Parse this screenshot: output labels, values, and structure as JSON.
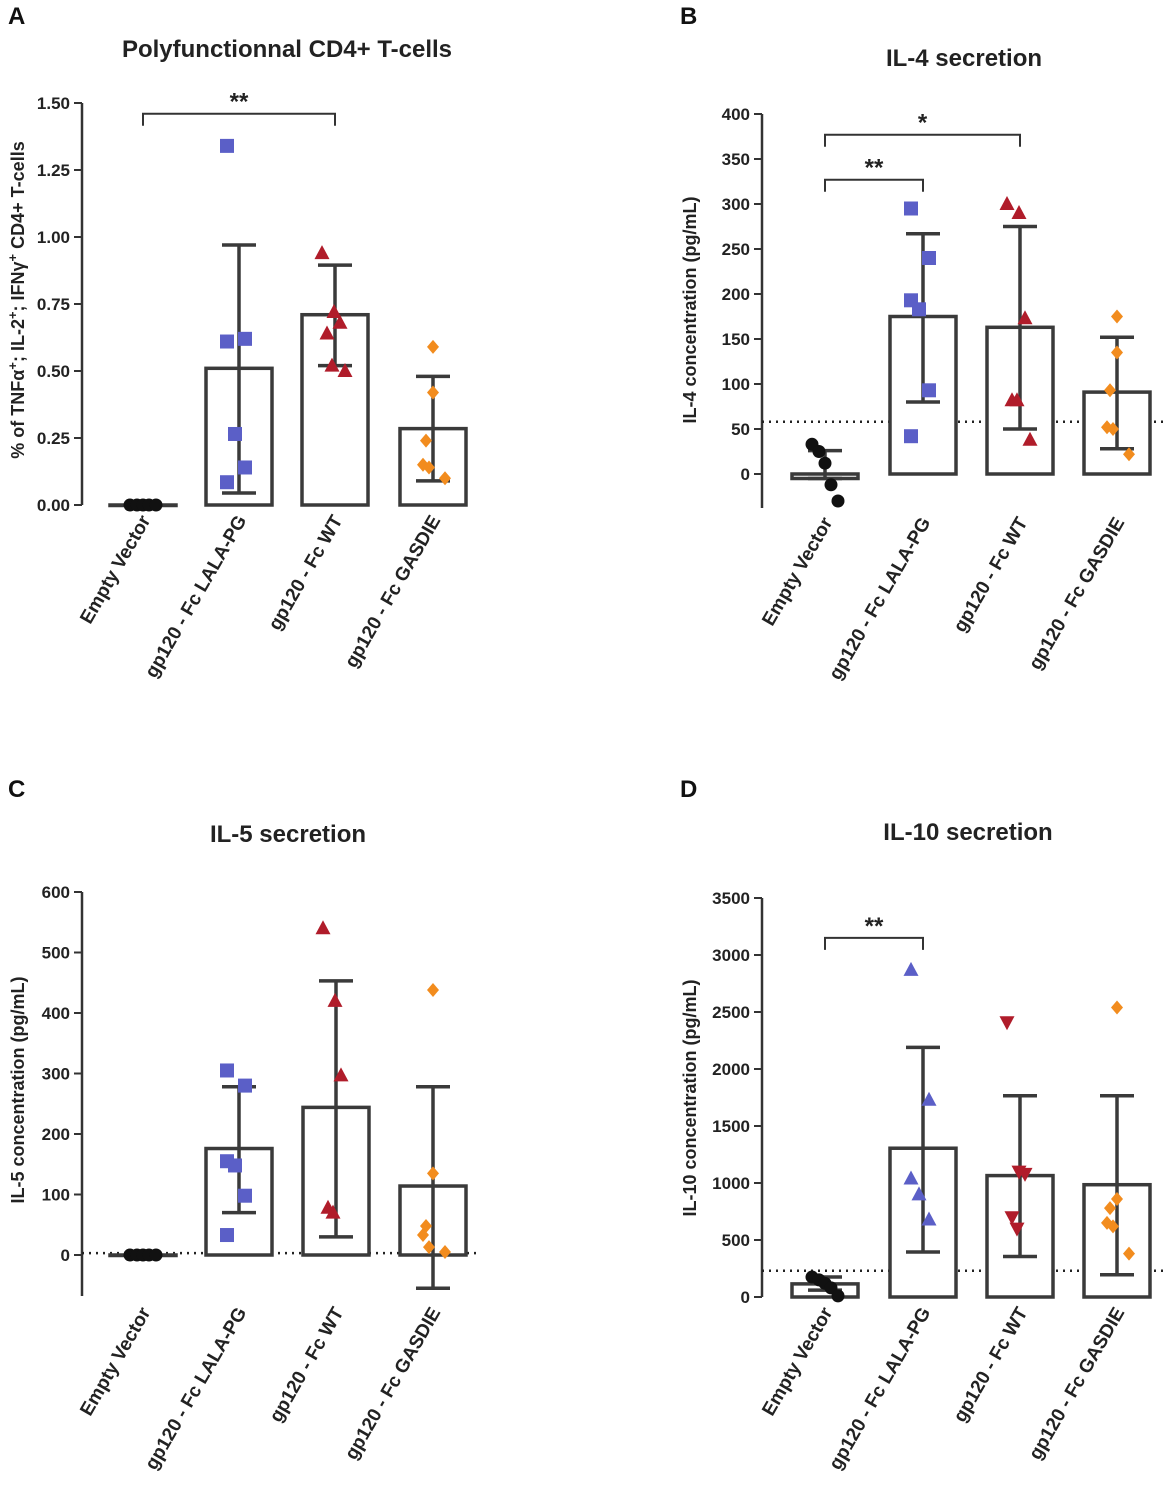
{
  "figure": {
    "categories": [
      "Empty Vector",
      "gp120 - Fc LALA-PG",
      "gp120 - Fc WT",
      "gp120 - Fc GASDIE"
    ],
    "colors": {
      "empty": "#111111",
      "lala": "#5b5fc7",
      "wt": "#b01c2a",
      "gasdie": "#f28c1e",
      "axis": "#333333"
    }
  },
  "chart_data": [
    {
      "panel": "A",
      "type": "bar",
      "title": "Polyfunctionnal CD4+ T-cells",
      "ylabel": "% of TNFα+; IL-2+; IFNγ+ CD4+ T-cells",
      "ylabel_parts": [
        "% of TNF",
        "α",
        "+",
        "; IL-2",
        "+",
        "; IFN",
        "γ",
        "+",
        " CD4+ T-cells"
      ],
      "ylim": [
        0,
        1.5
      ],
      "yticks": [
        0,
        0.25,
        0.5,
        0.75,
        1.0,
        1.25,
        1.5
      ],
      "ytick_labels": [
        "0.00",
        "0.25",
        "0.50",
        "0.75",
        "1.00",
        "1.25",
        "1.50"
      ],
      "categories": [
        "Empty Vector",
        "gp120 - Fc LALA-PG",
        "gp120 - Fc WT",
        "gp120 - Fc GASDIE"
      ],
      "values": [
        0.0,
        0.51,
        0.71,
        0.285
      ],
      "error_low": [
        0.0,
        0.045,
        0.52,
        0.09
      ],
      "error_high": [
        0.0,
        0.97,
        0.895,
        0.48
      ],
      "points": [
        [
          0.0,
          0.0,
          0.0,
          0.0,
          0.0
        ],
        [
          1.34,
          0.62,
          0.61,
          0.265,
          0.14,
          0.085
        ],
        [
          0.94,
          0.72,
          0.68,
          0.64,
          0.52,
          0.5
        ],
        [
          0.59,
          0.42,
          0.24,
          0.15,
          0.14,
          0.1
        ]
      ],
      "markers": [
        "circle",
        "square",
        "triangle",
        "diamond"
      ],
      "significance": [
        {
          "from": 0,
          "to": 2,
          "label": "**",
          "level": 1.46
        }
      ],
      "threshold": null
    },
    {
      "panel": "B",
      "type": "bar",
      "title": "IL-4 secretion",
      "ylabel": "IL-4 concentration (pg/mL)",
      "ylim": [
        -40,
        400
      ],
      "yticks": [
        0,
        50,
        100,
        150,
        200,
        250,
        300,
        350,
        400
      ],
      "ytick_labels": [
        "0",
        "50",
        "100",
        "150",
        "200",
        "250",
        "300",
        "350",
        "400"
      ],
      "categories": [
        "Empty Vector",
        "gp120 - Fc LALA-PG",
        "gp120 - Fc WT",
        "gp120 - Fc GASDIE"
      ],
      "values": [
        -5,
        175,
        163,
        91
      ],
      "error_low": [
        -5,
        80,
        50,
        28
      ],
      "error_high": [
        26,
        267,
        275,
        152
      ],
      "points": [
        [
          33,
          25,
          12,
          -12,
          -30
        ],
        [
          295,
          240,
          193,
          183,
          93,
          42
        ],
        [
          300,
          290,
          173,
          82,
          82,
          38
        ],
        [
          175,
          135,
          93,
          52,
          50,
          22
        ]
      ],
      "markers": [
        "circle",
        "square",
        "triangle",
        "diamond"
      ],
      "significance": [
        {
          "from": 0,
          "to": 1,
          "label": "**",
          "level": 327
        },
        {
          "from": 0,
          "to": 2,
          "label": "*",
          "level": 377
        }
      ],
      "threshold": 58
    },
    {
      "panel": "C",
      "type": "bar",
      "title": "IL-5 secretion",
      "ylabel": "IL-5 concentration (pg/mL)",
      "ylim": [
        -70,
        600
      ],
      "yticks": [
        0,
        100,
        200,
        300,
        400,
        500,
        600
      ],
      "ytick_labels": [
        "0",
        "100",
        "200",
        "300",
        "400",
        "500",
        "600"
      ],
      "categories": [
        "Empty Vector",
        "gp120 - Fc LALA-PG",
        "gp120 - Fc WT",
        "gp120 - Fc GASDIE"
      ],
      "values": [
        0,
        176,
        244,
        114
      ],
      "error_low": [
        0,
        70,
        30,
        -55
      ],
      "error_high": [
        0,
        278,
        453,
        278
      ],
      "points": [
        [
          0,
          0,
          0,
          0,
          0
        ],
        [
          305,
          280,
          155,
          148,
          98,
          33
        ],
        [
          540,
          420,
          297,
          78,
          70
        ],
        [
          438,
          135,
          48,
          33,
          13,
          5
        ]
      ],
      "markers": [
        "circle",
        "square",
        "triangle",
        "diamond"
      ],
      "significance": [],
      "threshold": 3
    },
    {
      "panel": "D",
      "type": "bar",
      "title": "IL-10 secretion",
      "ylabel": "IL-10 concentration (pg/mL)",
      "ylim": [
        0,
        3500
      ],
      "yticks": [
        0,
        500,
        1000,
        1500,
        2000,
        2500,
        3000,
        3500
      ],
      "ytick_labels": [
        "0",
        "500",
        "1000",
        "1500",
        "2000",
        "2500",
        "3000",
        "3500"
      ],
      "categories": [
        "Empty Vector",
        "gp120 - Fc LALA-PG",
        "gp120 - Fc WT",
        "gp120 - Fc GASDIE"
      ],
      "values": [
        115,
        1305,
        1065,
        985
      ],
      "error_low": [
        60,
        395,
        355,
        195
      ],
      "error_high": [
        175,
        2190,
        1765,
        1765
      ],
      "points": [
        [
          175,
          150,
          120,
          80,
          10
        ],
        [
          2870,
          1730,
          1040,
          900,
          680
        ],
        [
          2410,
          1100,
          1080,
          700,
          600
        ],
        [
          2540,
          860,
          780,
          650,
          620,
          380
        ]
      ],
      "markers": [
        "circle",
        "triangle",
        "triangle-down",
        "diamond"
      ],
      "significance": [
        {
          "from": 0,
          "to": 1,
          "label": "**",
          "level": 3150
        }
      ],
      "threshold": 230
    }
  ]
}
